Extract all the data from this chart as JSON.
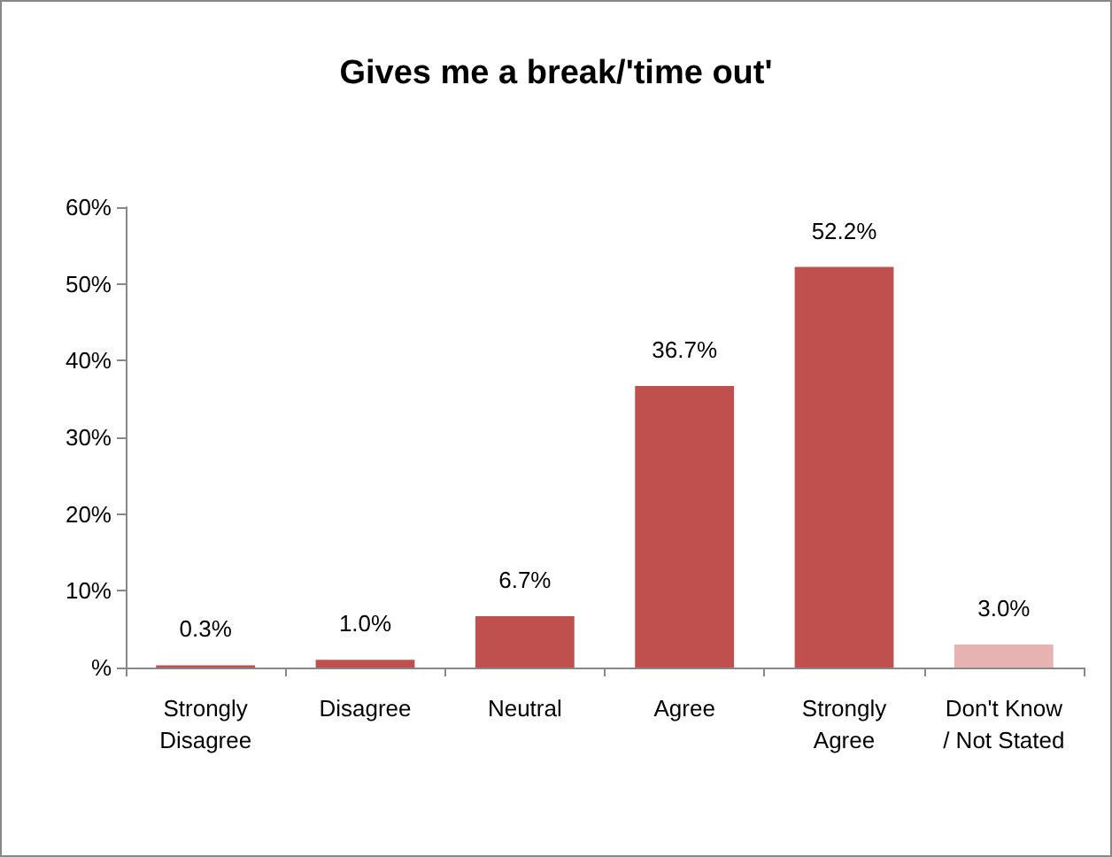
{
  "chart_data": {
    "type": "bar",
    "title": "Gives me a break/'time out'",
    "categories": [
      "Strongly\nDisagree",
      "Disagree",
      "Neutral",
      "Agree",
      "Strongly\nAgree",
      "Don't Know\n/ Not Stated"
    ],
    "values": [
      0.3,
      1.0,
      6.7,
      36.7,
      52.2,
      3.0
    ],
    "colors": [
      "#c0504d",
      "#c0504d",
      "#c0504d",
      "#c0504d",
      "#c0504d",
      "#e6b3b2"
    ],
    "value_labels": [
      "0.3%",
      "1.0%",
      "6.7%",
      "36.7%",
      "52.2%",
      "3.0%"
    ],
    "ylim": [
      0,
      60
    ],
    "yticks": [
      {
        "value": 0,
        "label": "%"
      },
      {
        "value": 10,
        "label": "10%"
      },
      {
        "value": 20,
        "label": "20%"
      },
      {
        "value": 30,
        "label": "30%"
      },
      {
        "value": 40,
        "label": "40%"
      },
      {
        "value": 50,
        "label": "50%"
      },
      {
        "value": 60,
        "label": "60%"
      }
    ],
    "grid": false
  }
}
